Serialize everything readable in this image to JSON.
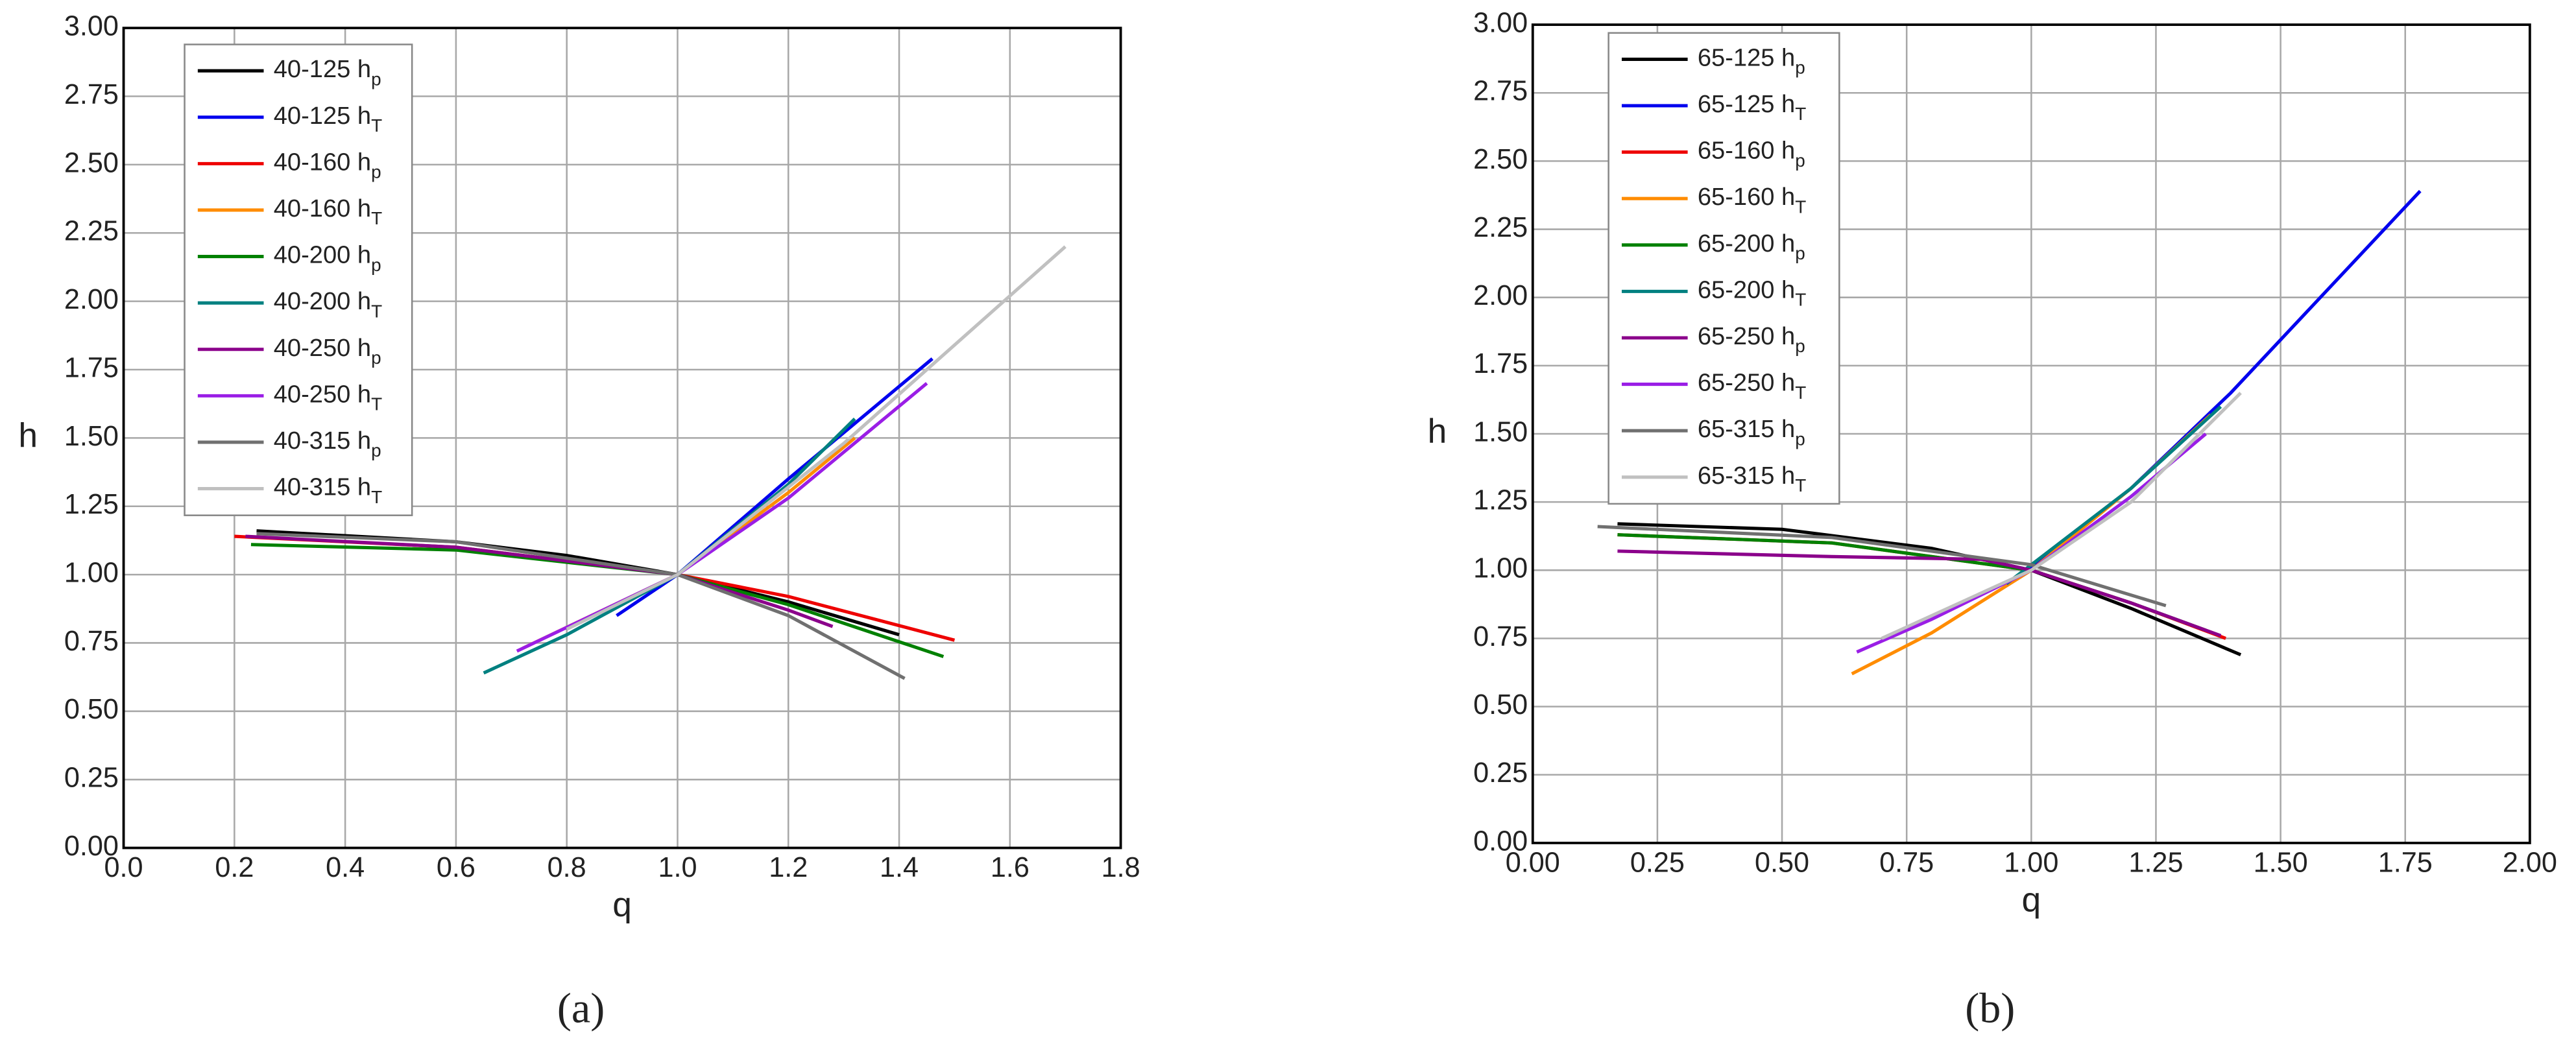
{
  "chart_data": [
    {
      "type": "line",
      "label": "(a)",
      "xlabel": "q",
      "ylabel": "h",
      "grid": true,
      "legend": "upper left",
      "xlim": [
        0,
        1.8
      ],
      "ylim": [
        0,
        3
      ],
      "xticks": [
        {
          "value": 0,
          "label": "0.0"
        },
        0.2,
        0.4,
        0.6,
        0.8,
        {
          "value": 1,
          "label": "1.0"
        },
        1.2,
        1.4,
        1.6,
        1.8
      ],
      "yticks": [
        {
          "value": 0,
          "label": "0.00"
        },
        0.25,
        {
          "value": 0.5,
          "label": "0.50"
        },
        0.75,
        {
          "value": 1,
          "label": "1.00"
        },
        1.25,
        {
          "value": 1.5,
          "label": "1.50"
        },
        1.75,
        {
          "value": 2,
          "label": "2.00"
        },
        2.25,
        {
          "value": 2.5,
          "label": "2.50"
        },
        2.75,
        {
          "value": 3,
          "label": "3.00"
        }
      ],
      "series": [
        {
          "name": "40-125 hp",
          "color": "#000000",
          "x": [
            0.24,
            0.6,
            0.8,
            1.0,
            1.2,
            1.4
          ],
          "values": [
            1.16,
            1.12,
            1.07,
            1.0,
            0.9,
            0.78
          ]
        },
        {
          "name": "40-125 hT",
          "color": "#0000ee",
          "x": [
            0.89,
            1.0,
            1.2,
            1.46
          ],
          "values": [
            0.85,
            1.0,
            1.35,
            1.79
          ]
        },
        {
          "name": "40-160 hp",
          "color": "#ee0000",
          "x": [
            0.2,
            0.6,
            1.0,
            1.2,
            1.5
          ],
          "values": [
            1.14,
            1.1,
            1.0,
            0.92,
            0.76
          ]
        },
        {
          "name": "40-160 hT",
          "color": "#ff8c00",
          "x": [
            0.72,
            1.0,
            1.2,
            1.32
          ],
          "values": [
            0.73,
            1.0,
            1.3,
            1.5
          ]
        },
        {
          "name": "40-200 hp",
          "color": "#008000",
          "x": [
            0.23,
            0.6,
            1.0,
            1.2,
            1.48
          ],
          "values": [
            1.11,
            1.09,
            1.0,
            0.89,
            0.7
          ]
        },
        {
          "name": "40-200 hT",
          "color": "#008080",
          "x": [
            0.65,
            0.8,
            1.0,
            1.2,
            1.32
          ],
          "values": [
            0.64,
            0.78,
            1.0,
            1.33,
            1.57
          ]
        },
        {
          "name": "40-250 hp",
          "color": "#8b008b",
          "x": [
            0.22,
            0.6,
            1.0,
            1.2,
            1.28
          ],
          "values": [
            1.14,
            1.1,
            1.0,
            0.87,
            0.81
          ]
        },
        {
          "name": "40-250 hT",
          "color": "#9a1ee6",
          "x": [
            0.71,
            1.0,
            1.2,
            1.45
          ],
          "values": [
            0.72,
            1.0,
            1.28,
            1.7
          ]
        },
        {
          "name": "40-315 hp",
          "color": "#707070",
          "x": [
            0.24,
            0.6,
            1.0,
            1.2,
            1.41
          ],
          "values": [
            1.15,
            1.12,
            1.0,
            0.85,
            0.62
          ]
        },
        {
          "name": "40-315 hT",
          "color": "#c0c0c0",
          "x": [
            0.8,
            1.0,
            1.3,
            1.7
          ],
          "values": [
            0.8,
            1.0,
            1.48,
            2.2
          ]
        }
      ]
    },
    {
      "type": "line",
      "label": "(b)",
      "xlabel": "q",
      "ylabel": "h",
      "grid": true,
      "legend": "upper left",
      "xlim": [
        0,
        2
      ],
      "ylim": [
        0,
        3
      ],
      "xticks": [
        {
          "value": 0,
          "label": "0.00"
        },
        0.25,
        {
          "value": 0.5,
          "label": "0.50"
        },
        0.75,
        {
          "value": 1,
          "label": "1.00"
        },
        1.25,
        {
          "value": 1.5,
          "label": "1.50"
        },
        1.75,
        {
          "value": 2,
          "label": "2.00"
        }
      ],
      "yticks": [
        {
          "value": 0,
          "label": "0.00"
        },
        0.25,
        {
          "value": 0.5,
          "label": "0.50"
        },
        0.75,
        {
          "value": 1,
          "label": "1.00"
        },
        1.25,
        {
          "value": 1.5,
          "label": "1.50"
        },
        1.75,
        {
          "value": 2,
          "label": "2.00"
        },
        2.25,
        {
          "value": 2.5,
          "label": "2.50"
        },
        2.75,
        {
          "value": 3,
          "label": "3.00"
        }
      ],
      "series": [
        {
          "name": "65-125 hp",
          "color": "#000000",
          "x": [
            0.17,
            0.5,
            0.8,
            1.0,
            1.2,
            1.42
          ],
          "values": [
            1.17,
            1.15,
            1.08,
            1.0,
            0.86,
            0.69
          ]
        },
        {
          "name": "65-125 hT",
          "color": "#0000ee",
          "x": [
            0.98,
            1.2,
            1.4,
            1.78
          ],
          "values": [
            0.98,
            1.3,
            1.65,
            2.39
          ]
        },
        {
          "name": "65-160 hp",
          "color": "#ee0000",
          "x": [
            0.17,
            0.6,
            1.0,
            1.2,
            1.39
          ],
          "values": [
            1.13,
            1.1,
            1.0,
            0.88,
            0.75
          ]
        },
        {
          "name": "65-160 hT",
          "color": "#ff8c00",
          "x": [
            0.64,
            0.8,
            1.0,
            1.2,
            1.36
          ],
          "values": [
            0.62,
            0.77,
            1.0,
            1.3,
            1.57
          ]
        },
        {
          "name": "65-200 hp",
          "color": "#008000",
          "x": [
            0.17,
            0.6,
            1.0,
            1.2,
            1.35
          ],
          "values": [
            1.13,
            1.1,
            1.0,
            0.88,
            0.78
          ]
        },
        {
          "name": "65-200 hT",
          "color": "#008080",
          "x": [
            0.95,
            1.2,
            1.38
          ],
          "values": [
            0.95,
            1.3,
            1.6
          ]
        },
        {
          "name": "65-250 hp",
          "color": "#8b008b",
          "x": [
            0.17,
            0.6,
            0.9,
            1.0,
            1.2,
            1.38
          ],
          "values": [
            1.07,
            1.05,
            1.04,
            1.0,
            0.88,
            0.76
          ]
        },
        {
          "name": "65-250 hT",
          "color": "#9a1ee6",
          "x": [
            0.65,
            0.8,
            1.0,
            1.2,
            1.35
          ],
          "values": [
            0.7,
            0.82,
            1.0,
            1.27,
            1.5
          ]
        },
        {
          "name": "65-315 hp",
          "color": "#707070",
          "x": [
            0.13,
            0.6,
            1.0,
            1.27
          ],
          "values": [
            1.16,
            1.12,
            1.02,
            0.87
          ]
        },
        {
          "name": "65-315 hT",
          "color": "#c0c0c0",
          "x": [
            0.7,
            1.0,
            1.2,
            1.42
          ],
          "values": [
            0.75,
            1.0,
            1.25,
            1.65
          ]
        }
      ]
    }
  ]
}
